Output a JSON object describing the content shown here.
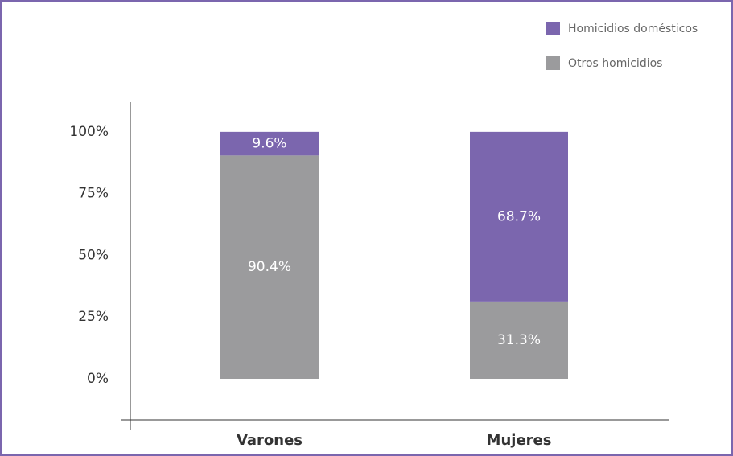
{
  "chart_data": {
    "type": "stacked_bar",
    "categories": [
      "Varones",
      "Mujeres"
    ],
    "series": [
      {
        "name": "Otros homicidios",
        "color": "#9b9b9d",
        "values": [
          90.4,
          31.3
        ],
        "value_labels": [
          "90.4%",
          "31.3%"
        ]
      },
      {
        "name": "Homicidios domésticos",
        "color": "#7b66ae",
        "values": [
          9.6,
          68.7
        ],
        "value_labels": [
          "9.6%",
          "68.7%"
        ]
      }
    ],
    "ylim": [
      -16.6,
      112
    ],
    "yticks": [
      {
        "value": 0,
        "label": "0%"
      },
      {
        "value": 25,
        "label": "25%"
      },
      {
        "value": 50,
        "label": "50%"
      },
      {
        "value": 75,
        "label": "75%"
      },
      {
        "value": 100,
        "label": "100%"
      }
    ],
    "legend": "upper right"
  }
}
